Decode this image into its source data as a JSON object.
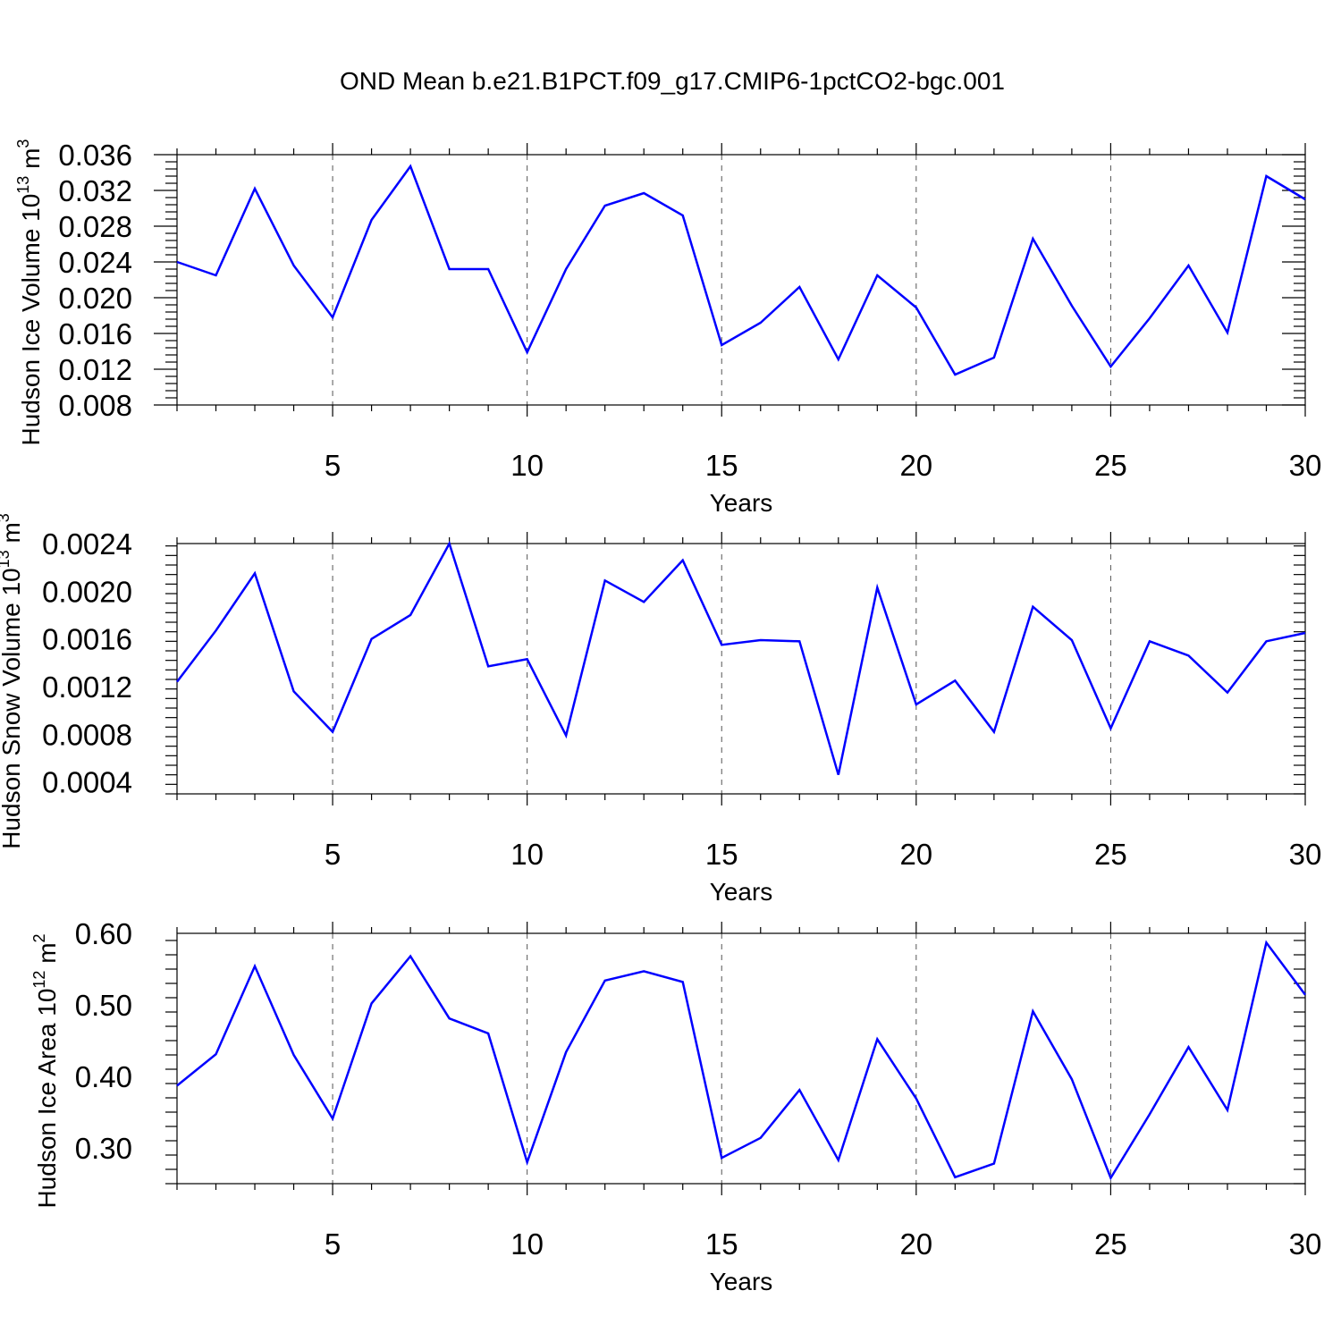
{
  "chart_data": [
    {
      "type": "line",
      "title": "OND Mean b.e21.B1PCT.f09_g17.CMIP6-1pctCO2-bgc.001",
      "ylabel": "Hudson Ice Volume 10",
      "ylabel_exp": "13",
      "ylabel_unit": " m",
      "ylabel_unit_exp": "3",
      "xlabel": "Years",
      "xlim": [
        1,
        30
      ],
      "ylim": [
        0.008,
        0.036
      ],
      "xticks": [
        "5",
        "10",
        "15",
        "20",
        "25",
        "30"
      ],
      "yticks": [
        "0.008",
        "0.012",
        "0.016",
        "0.020",
        "0.024",
        "0.028",
        "0.032",
        "0.036"
      ],
      "x": [
        1,
        2,
        3,
        4,
        5,
        6,
        7,
        8,
        9,
        10,
        11,
        12,
        13,
        14,
        15,
        16,
        17,
        18,
        19,
        20,
        21,
        22,
        23,
        24,
        25,
        26,
        27,
        28,
        29,
        30
      ],
      "series": [
        {
          "name": "Hudson Ice Volume",
          "color": "#0000ff",
          "values": [
            0.024,
            0.0225,
            0.0322,
            0.0236,
            0.0178,
            0.0287,
            0.0347,
            0.0232,
            0.0232,
            0.0139,
            0.0232,
            0.0303,
            0.0317,
            0.0292,
            0.0147,
            0.0172,
            0.0212,
            0.0131,
            0.0225,
            0.0189,
            0.0114,
            0.0133,
            0.0266,
            0.0191,
            0.0123,
            0.0177,
            0.0236,
            0.0161,
            0.0336,
            0.031
          ]
        }
      ]
    },
    {
      "type": "line",
      "ylabel": "Hudson Snow Volume 10",
      "ylabel_exp": "13",
      "ylabel_unit": " m",
      "ylabel_unit_exp": "3",
      "xlabel": "Years",
      "xlim": [
        1,
        30
      ],
      "ylim": [
        0.0003,
        0.0024
      ],
      "xticks": [
        "5",
        "10",
        "15",
        "20",
        "25",
        "30"
      ],
      "yticks": [
        "0.0004",
        "0.0008",
        "0.0012",
        "0.0016",
        "0.0020",
        "0.0024"
      ],
      "x": [
        1,
        2,
        3,
        4,
        5,
        6,
        7,
        8,
        9,
        10,
        11,
        12,
        13,
        14,
        15,
        16,
        17,
        18,
        19,
        20,
        21,
        22,
        23,
        24,
        25,
        26,
        27,
        28,
        29,
        30
      ],
      "series": [
        {
          "name": "Hudson Snow Volume",
          "color": "#0000ff",
          "values": [
            0.00124,
            0.00167,
            0.00215,
            0.00116,
            0.00082,
            0.0016,
            0.0018,
            0.0024,
            0.00137,
            0.00143,
            0.00079,
            0.00209,
            0.00191,
            0.00226,
            0.00155,
            0.00159,
            0.00158,
            0.00046,
            0.00203,
            0.00105,
            0.00125,
            0.00082,
            0.00187,
            0.00159,
            0.00085,
            0.00158,
            0.00146,
            0.00115,
            0.00158,
            0.00165
          ]
        }
      ]
    },
    {
      "type": "line",
      "ylabel": "Hudson Ice Area 10",
      "ylabel_exp": "12",
      "ylabel_unit": " m",
      "ylabel_unit_exp": "2",
      "xlabel": "Years",
      "xlim": [
        1,
        30
      ],
      "ylim": [
        0.25,
        0.6
      ],
      "xticks": [
        "5",
        "10",
        "15",
        "20",
        "25",
        "30"
      ],
      "yticks": [
        "0.30",
        "0.40",
        "0.50",
        "0.60"
      ],
      "x": [
        1,
        2,
        3,
        4,
        5,
        6,
        7,
        8,
        9,
        10,
        11,
        12,
        13,
        14,
        15,
        16,
        17,
        18,
        19,
        20,
        21,
        22,
        23,
        24,
        25,
        26,
        27,
        28,
        29,
        30
      ],
      "series": [
        {
          "name": "Hudson Ice Area",
          "color": "#0000ff",
          "values": [
            0.387,
            0.431,
            0.554,
            0.43,
            0.341,
            0.502,
            0.568,
            0.481,
            0.46,
            0.28,
            0.434,
            0.534,
            0.547,
            0.532,
            0.286,
            0.314,
            0.381,
            0.283,
            0.452,
            0.369,
            0.259,
            0.278,
            0.491,
            0.396,
            0.258,
            0.347,
            0.441,
            0.353,
            0.587,
            0.514
          ]
        }
      ]
    }
  ]
}
